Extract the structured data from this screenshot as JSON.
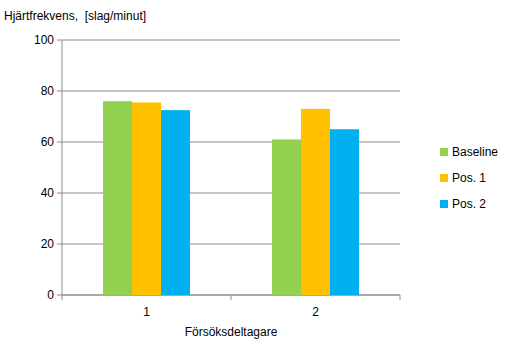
{
  "chart_data": {
    "type": "bar",
    "y_label": "Hjärtfrekvens,  [slag/minut]",
    "x_label": "Försöksdeltagare",
    "categories": [
      "1",
      "2"
    ],
    "series": [
      {
        "name": "Baseline",
        "color": "#92d050",
        "values": [
          76,
          61
        ]
      },
      {
        "name": "Pos. 1",
        "color": "#ffc000",
        "values": [
          75.5,
          73
        ]
      },
      {
        "name": "Pos. 2",
        "color": "#00b0f0",
        "values": [
          72.5,
          65
        ]
      }
    ],
    "ylim": [
      0,
      100
    ],
    "yticks": [
      0,
      20,
      40,
      60,
      80,
      100
    ],
    "grid": true,
    "legend": "right"
  }
}
